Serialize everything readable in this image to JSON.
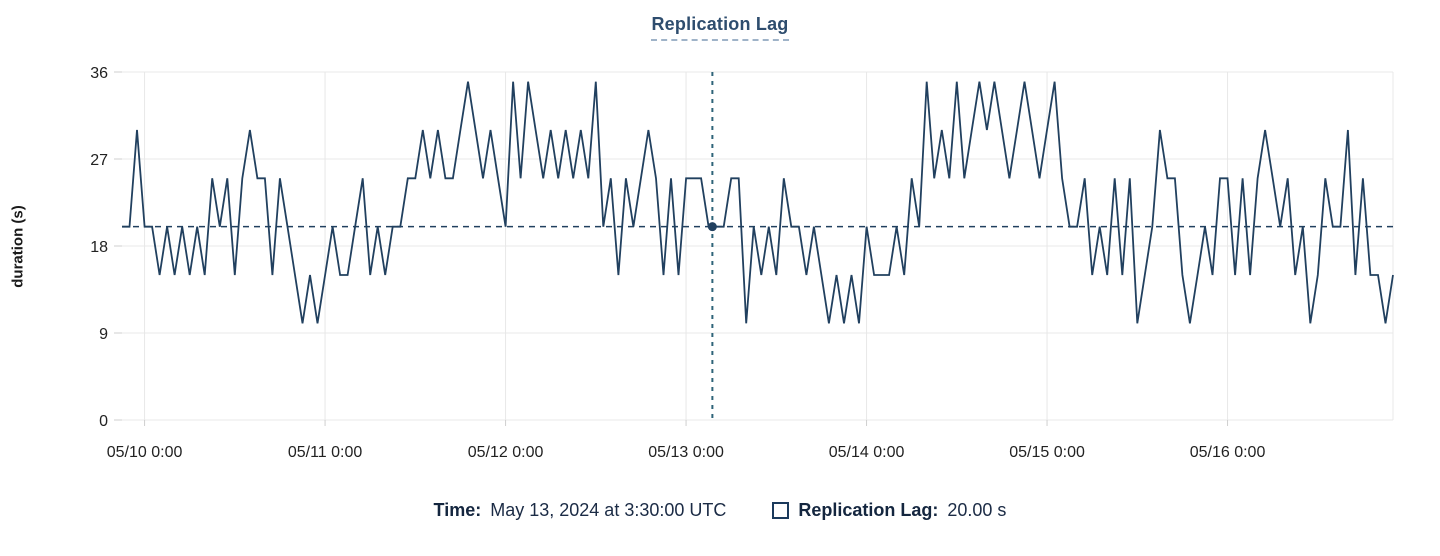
{
  "chart_data": {
    "type": "line",
    "title": "Replication Lag",
    "ylabel": "duration (s)",
    "ylim": [
      0,
      36
    ],
    "yticks": [
      0,
      9,
      18,
      27,
      36
    ],
    "xticks": [
      {
        "label": "05/10 0:00",
        "index": 3
      },
      {
        "label": "05/11 0:00",
        "index": 27
      },
      {
        "label": "05/12 0:00",
        "index": 51
      },
      {
        "label": "05/13 0:00",
        "index": 75
      },
      {
        "label": "05/14 0:00",
        "index": 99
      },
      {
        "label": "05/15 0:00",
        "index": 123
      },
      {
        "label": "05/16 0:00",
        "index": 147
      }
    ],
    "grid": true,
    "legend_position": "bottom",
    "average_line_value": 20,
    "crosshair": {
      "index": 78.5,
      "value": 20
    },
    "colors": {
      "line": "#21405f",
      "crosshair": "#2f6479",
      "grid": "#e8e8e8",
      "tick": "#cfcfcf",
      "title": "#2e4d6e",
      "legend_text": "#14263f"
    },
    "series": [
      {
        "name": "Replication Lag",
        "values": [
          20,
          20,
          30,
          20,
          20,
          15,
          20,
          15,
          20,
          15,
          20,
          15,
          25,
          20,
          25,
          15,
          25,
          30,
          25,
          25,
          15,
          25,
          20,
          15,
          10,
          15,
          10,
          15,
          20,
          15,
          15,
          20,
          25,
          15,
          20,
          15,
          20,
          20,
          25,
          25,
          30,
          25,
          30,
          25,
          25,
          30,
          35,
          30,
          25,
          30,
          25,
          20,
          35,
          25,
          35,
          30,
          25,
          30,
          25,
          30,
          25,
          30,
          25,
          35,
          20,
          25,
          15,
          25,
          20,
          25,
          30,
          25,
          15,
          25,
          15,
          25,
          25,
          25,
          20,
          20,
          20,
          25,
          25,
          10,
          20,
          15,
          20,
          15,
          25,
          20,
          20,
          15,
          20,
          15,
          10,
          15,
          10,
          15,
          10,
          20,
          15,
          15,
          15,
          20,
          15,
          25,
          20,
          35,
          25,
          30,
          25,
          35,
          25,
          30,
          35,
          30,
          35,
          30,
          25,
          30,
          35,
          30,
          25,
          30,
          35,
          25,
          20,
          20,
          25,
          15,
          20,
          15,
          25,
          15,
          25,
          10,
          15,
          20,
          30,
          25,
          25,
          15,
          10,
          15,
          20,
          15,
          25,
          25,
          15,
          25,
          15,
          25,
          30,
          25,
          20,
          25,
          15,
          20,
          10,
          15,
          25,
          20,
          20,
          30,
          15,
          25,
          15,
          15,
          10,
          15
        ]
      }
    ]
  },
  "readout": {
    "time_label": "Time:",
    "time_value": "May 13, 2024 at 3:30:00 UTC",
    "series_label": "Replication Lag:",
    "series_value": "20.00 s"
  }
}
